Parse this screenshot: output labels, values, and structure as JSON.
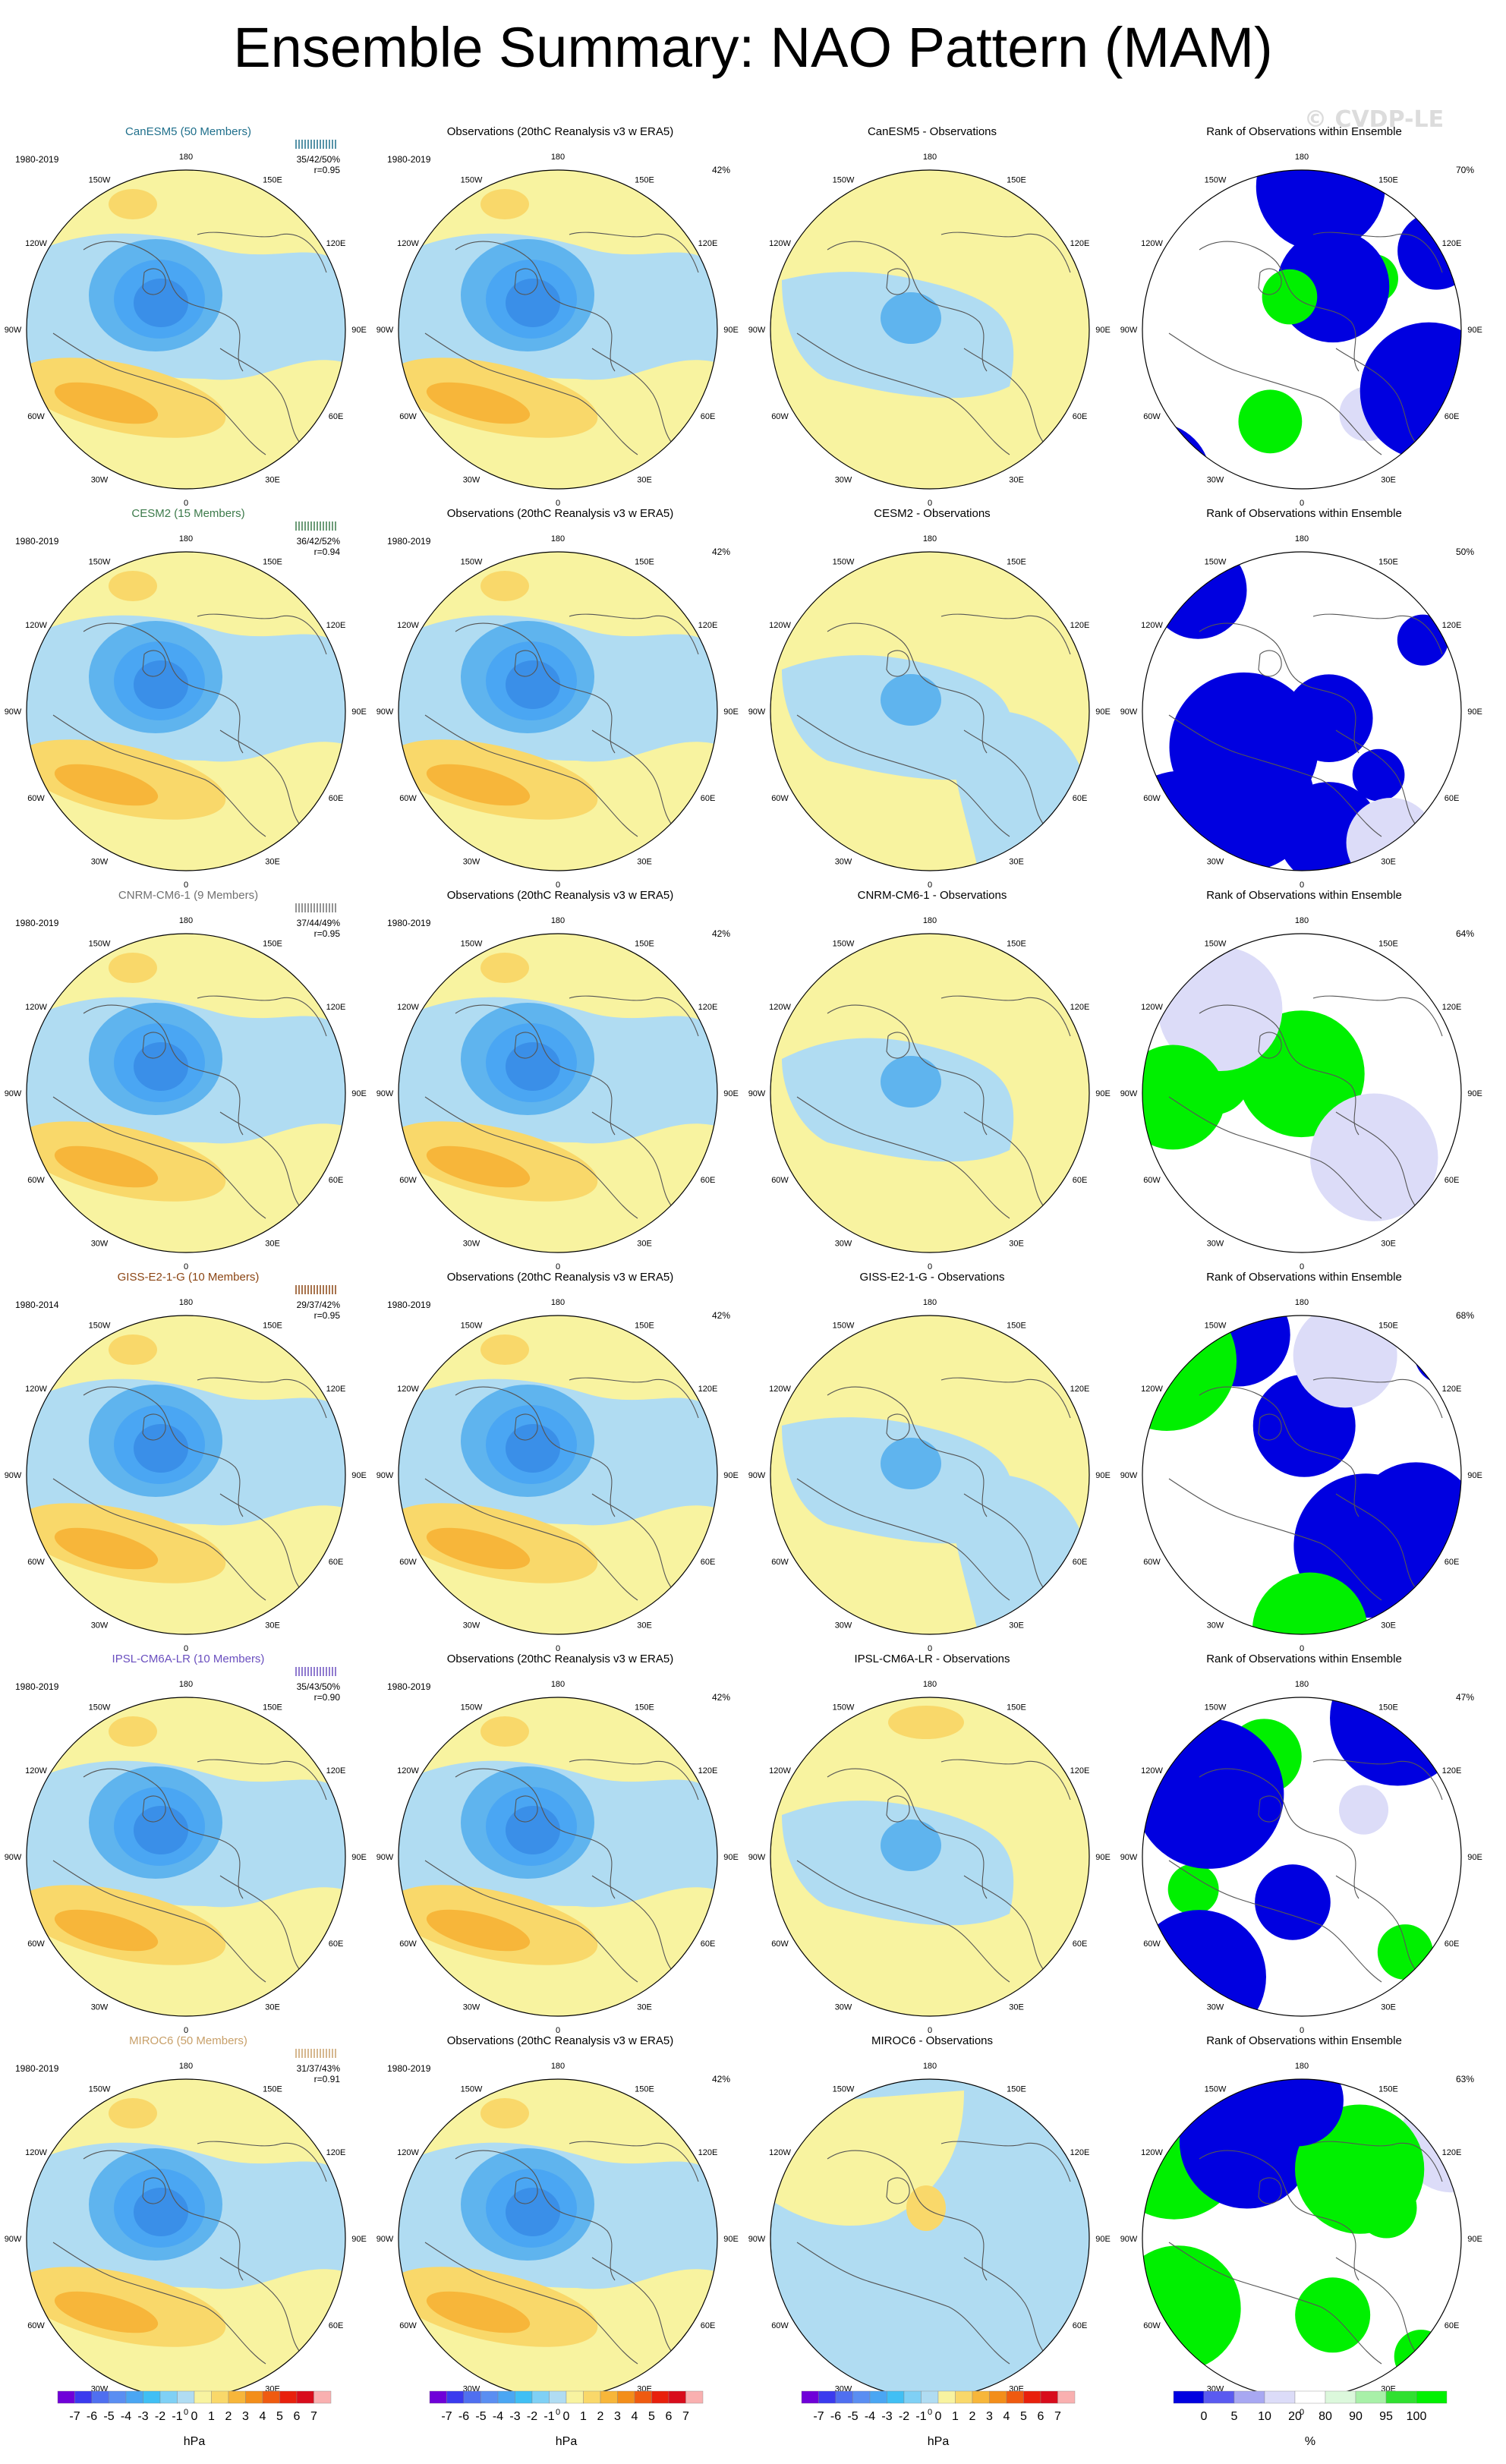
{
  "title": "Ensemble Summary: NAO Pattern (MAM)",
  "watermark": "© CVDP-LE",
  "rows": [
    {
      "model": "CanESM5 (50 Members)",
      "model_color": "#1f6f8b",
      "model_period": "1980-2019",
      "model_stats": "35/42/50%",
      "model_r": "r=0.95",
      "diff_title": "CanESM5 - Observations",
      "obs_pct": "42%",
      "rank_pct": "70%"
    },
    {
      "model": "CESM2 (15 Members)",
      "model_color": "#3c7a4a",
      "model_period": "1980-2019",
      "model_stats": "36/42/52%",
      "model_r": "r=0.94",
      "diff_title": "CESM2 - Observations",
      "obs_pct": "42%",
      "rank_pct": "50%"
    },
    {
      "model": "CNRM-CM6-1 (9 Members)",
      "model_color": "#707070",
      "model_period": "1980-2019",
      "model_stats": "37/44/49%",
      "model_r": "r=0.95",
      "diff_title": "CNRM-CM6-1 - Observations",
      "obs_pct": "42%",
      "rank_pct": "64%"
    },
    {
      "model": "GISS-E2-1-G (10 Members)",
      "model_color": "#8b4513",
      "model_period": "1980-2014",
      "model_stats": "29/37/42%",
      "model_r": "r=0.95",
      "diff_title": "GISS-E2-1-G - Observations",
      "obs_pct": "42%",
      "rank_pct": "68%"
    },
    {
      "model": "IPSL-CM6A-LR (10 Members)",
      "model_color": "#6a4fbf",
      "model_period": "1980-2019",
      "model_stats": "35/43/50%",
      "model_r": "r=0.90",
      "diff_title": "IPSL-CM6A-LR - Observations",
      "obs_pct": "42%",
      "rank_pct": "47%"
    },
    {
      "model": "MIROC6 (50 Members)",
      "model_color": "#c8a06a",
      "model_period": "1980-2019",
      "model_stats": "31/37/43%",
      "model_r": "r=0.91",
      "diff_title": "MIROC6 - Observations",
      "obs_pct": "42%",
      "rank_pct": "63%"
    }
  ],
  "obs_title": "Observations (20thC Reanalysis v3 w ERA5)",
  "obs_period": "1980-2019",
  "rank_title": "Rank of Observations within Ensemble",
  "lon_labels": [
    "180",
    "150E",
    "120E",
    "90E",
    "60E",
    "30E",
    "0",
    "30W",
    "60W",
    "90W",
    "120W",
    "150W"
  ],
  "colorbars": [
    {
      "unit": "hPa",
      "labels": [
        "-7",
        "-6",
        "-5",
        "-4",
        "-3",
        "-2",
        "-1",
        "0",
        "1",
        "2",
        "3",
        "4",
        "5",
        "6",
        "7"
      ],
      "colors": [
        "#6f00d8",
        "#3a3aee",
        "#4f6ff0",
        "#5a8ef2",
        "#4aa6f3",
        "#40bff4",
        "#7fd0f5",
        "#b0dcf2",
        "#f8f3a0",
        "#f9d86a",
        "#f7b63a",
        "#f38e1a",
        "#ef5a10",
        "#e8200c",
        "#d80c1c",
        "#f9b0b0"
      ]
    },
    {
      "unit": "hPa",
      "labels": [
        "-7",
        "-6",
        "-5",
        "-4",
        "-3",
        "-2",
        "-1",
        "0",
        "1",
        "2",
        "3",
        "4",
        "5",
        "6",
        "7"
      ],
      "colors": [
        "#6f00d8",
        "#3a3aee",
        "#4f6ff0",
        "#5a8ef2",
        "#4aa6f3",
        "#40bff4",
        "#7fd0f5",
        "#b0dcf2",
        "#f8f3a0",
        "#f9d86a",
        "#f7b63a",
        "#f38e1a",
        "#ef5a10",
        "#e8200c",
        "#d80c1c",
        "#f9b0b0"
      ]
    },
    {
      "unit": "hPa",
      "labels": [
        "-7",
        "-6",
        "-5",
        "-4",
        "-3",
        "-2",
        "-1",
        "0",
        "1",
        "2",
        "3",
        "4",
        "5",
        "6",
        "7"
      ],
      "colors": [
        "#6f00d8",
        "#3a3aee",
        "#4f6ff0",
        "#5a8ef2",
        "#4aa6f3",
        "#40bff4",
        "#7fd0f5",
        "#b0dcf2",
        "#f8f3a0",
        "#f9d86a",
        "#f7b63a",
        "#f38e1a",
        "#ef5a10",
        "#e8200c",
        "#d80c1c",
        "#f9b0b0"
      ]
    },
    {
      "unit": "%",
      "labels": [
        "0",
        "5",
        "10",
        "20",
        "80",
        "90",
        "95",
        "100"
      ],
      "colors": [
        "#0000e0",
        "#5a5af0",
        "#a8a8f2",
        "#dcdcf8",
        "#ffffff",
        "#dcf8dc",
        "#a8f0a8",
        "#30e030",
        "#00f000"
      ]
    }
  ],
  "chart_data": {
    "type": "heatmap",
    "description_fields": "NAO SLP regression pattern maps (hPa) and rank of observations (%), polar stereographic projection",
    "units_pattern": "hPa",
    "units_rank": "%",
    "pattern_range": [
      -7,
      7
    ],
    "rank_levels": [
      0,
      5,
      10,
      20,
      80,
      90,
      95,
      100
    ]
  },
  "colors": {
    "neg_strong": "#3a8fe8",
    "neg_mid": "#5fb4ee",
    "neg_light": "#b0dcf2",
    "pos_light": "#f8f3a0",
    "pos_mid": "#f9d86a",
    "pos_strong": "#f7b63a",
    "rank_blue": "#0000e0",
    "rank_green": "#00f000"
  }
}
